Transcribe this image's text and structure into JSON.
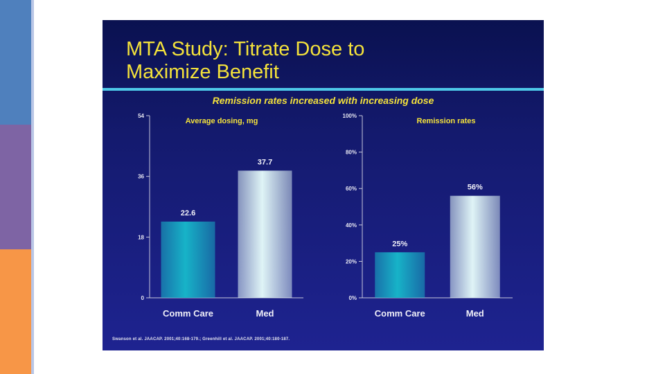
{
  "colors": {
    "side_blue": "#4f80bd",
    "side_purple": "#7e64a4",
    "side_orange": "#f79647",
    "slide_bg": "#141a6e",
    "title": "#f4e23b",
    "rule": "#4ec8e8",
    "bar_teal": "#17b3c8",
    "bar_white": "#dff4f6"
  },
  "slide": {
    "title_line1": "MTA Study: Titrate Dose to",
    "title_line2": "Maximize Benefit",
    "subtitle": "Remission rates increased with increasing dose",
    "footnote": "Swanson et al. JAACAP. 2001;40:168-179.; Greenhill et al. JAACAP. 2001;40:180-187."
  },
  "chart_data": [
    {
      "type": "bar",
      "title": "Average dosing, mg",
      "categories": [
        "Comm Care",
        "Med"
      ],
      "values": [
        22.6,
        37.7
      ],
      "value_labels": [
        "22.6",
        "37.7"
      ],
      "ylim": [
        0,
        54
      ],
      "yticks": [
        0,
        18,
        36,
        54
      ],
      "ytick_labels": [
        "0",
        "18",
        "36",
        "54"
      ],
      "colors": [
        "#17b3c8",
        "#dff4f6"
      ],
      "xlabel": "",
      "ylabel": "",
      "grid": false
    },
    {
      "type": "bar",
      "title": "Remission rates",
      "categories": [
        "Comm Care",
        "Med"
      ],
      "values": [
        25,
        56
      ],
      "value_labels": [
        "25%",
        "56%"
      ],
      "ylim": [
        0,
        100
      ],
      "yticks": [
        0,
        20,
        40,
        60,
        80,
        100
      ],
      "ytick_labels": [
        "0%",
        "20%",
        "40%",
        "60%",
        "80%",
        "100%"
      ],
      "colors": [
        "#17b3c8",
        "#dff4f6"
      ],
      "xlabel": "",
      "ylabel": "",
      "grid": false
    }
  ]
}
